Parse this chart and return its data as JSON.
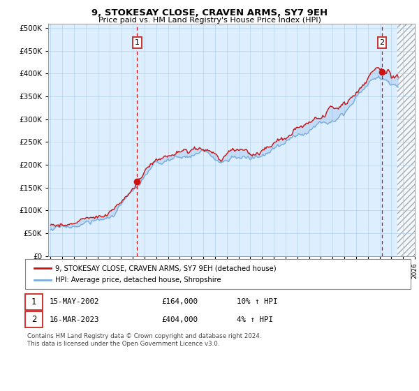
{
  "title": "9, STOKESAY CLOSE, CRAVEN ARMS, SY7 9EH",
  "subtitle": "Price paid vs. HM Land Registry's House Price Index (HPI)",
  "ylim": [
    0,
    500000
  ],
  "yticks": [
    0,
    50000,
    100000,
    150000,
    200000,
    250000,
    300000,
    350000,
    400000,
    450000,
    500000
  ],
  "xlim_start": 1995.0,
  "xlim_end": 2026.0,
  "hpi_color": "#7aacdc",
  "price_color": "#cc1111",
  "annotation1_date": 2002.37,
  "annotation1_price": 164000,
  "annotation1_label": "1",
  "annotation2_date": 2023.21,
  "annotation2_price": 404000,
  "annotation2_label": "2",
  "legend_line1": "9, STOKESAY CLOSE, CRAVEN ARMS, SY7 9EH (detached house)",
  "legend_line2": "HPI: Average price, detached house, Shropshire",
  "table_row1": [
    "1",
    "15-MAY-2002",
    "£164,000",
    "10% ↑ HPI"
  ],
  "table_row2": [
    "2",
    "16-MAR-2023",
    "£404,000",
    "4% ↑ HPI"
  ],
  "footnote": "Contains HM Land Registry data © Crown copyright and database right 2024.\nThis data is licensed under the Open Government Licence v3.0.",
  "bg_color": "#ffffff",
  "plot_bg_color": "#ddeeff",
  "grid_color": "#aaccee",
  "hatch_color": "#cccccc",
  "fill_alpha": 0.35
}
